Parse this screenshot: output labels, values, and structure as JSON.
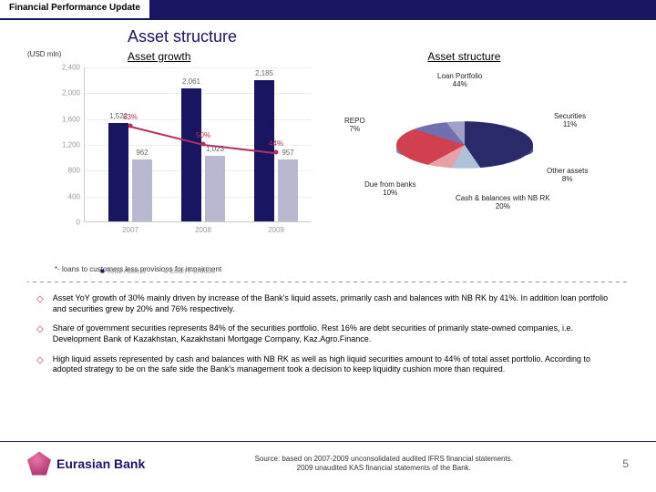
{
  "header": {
    "section": "Financial Performance Update"
  },
  "title": "Asset structure",
  "unit": "(USD mln)",
  "subheads": {
    "left": "Asset growth",
    "right": "Asset structure"
  },
  "bar_chart": {
    "type": "bar+line",
    "ylim": [
      0,
      2400
    ],
    "ytick_step": 400,
    "yticks": [
      "0",
      "400",
      "800",
      "1,200",
      "1,600",
      "2,000",
      "2,400"
    ],
    "categories": [
      "2007",
      "2008",
      "2009"
    ],
    "series": {
      "total": {
        "label": "Total Assets",
        "color": "#1a1560",
        "values": [
          1522,
          2061,
          2185
        ]
      },
      "loan": {
        "label": "Loan Portfolio",
        "color": "#b8b8d0",
        "values": [
          962,
          1023,
          957
        ]
      }
    },
    "line": {
      "color": "#b03060",
      "pct": [
        "63%",
        "50%",
        "44%"
      ],
      "y": [
        63,
        50,
        44
      ],
      "y_scale_top": 100
    }
  },
  "footnote": "*- loans to customers less provisions for impairment",
  "pie": {
    "type": "pie3d",
    "slices": [
      {
        "label": "Loan Portfolio",
        "pct": "44%",
        "color": "#2a2a6a"
      },
      {
        "label": "Securities",
        "pct": "11%",
        "color": "#b0c0d8"
      },
      {
        "label": "Other assets",
        "pct": "8%",
        "color": "#e8a0a8"
      },
      {
        "label": "Cash & balances with NB RK",
        "pct": "20%",
        "color": "#d04050"
      },
      {
        "label": "Due from banks",
        "pct": "10%",
        "color": "#7070b0"
      },
      {
        "label": "REPO",
        "pct": "7%",
        "color": "#a0a0c8"
      }
    ]
  },
  "bullets": [
    "Asset YoY growth of 30% mainly driven by increase of the Bank's liquid assets, primarily cash and balances with NB RK by 41%. In addition loan portfolio and securities grew by 20% and 76% respectively.",
    "Share of government securities represents 84% of the securities portfolio. Rest 16% are debt securities of primarily state-owned companies, i.e. Development Bank of Kazakhstan, Kazakhstani Mortgage Company, Kaz.Agro.Finance.",
    "High liquid assets represented by cash and balances with NB RK as well as high liquid securities amount to 44% of total asset portfolio. According to adopted strategy to be on the safe side the Bank's management took a decision to keep liquidity cushion more than required."
  ],
  "logo_text": "Eurasian Bank",
  "source": "Source: based on 2007-2009 unconsolidated audited IFRS financial statements.\n2009 unaudited KAS financial statements of the Bank.",
  "page": "5"
}
